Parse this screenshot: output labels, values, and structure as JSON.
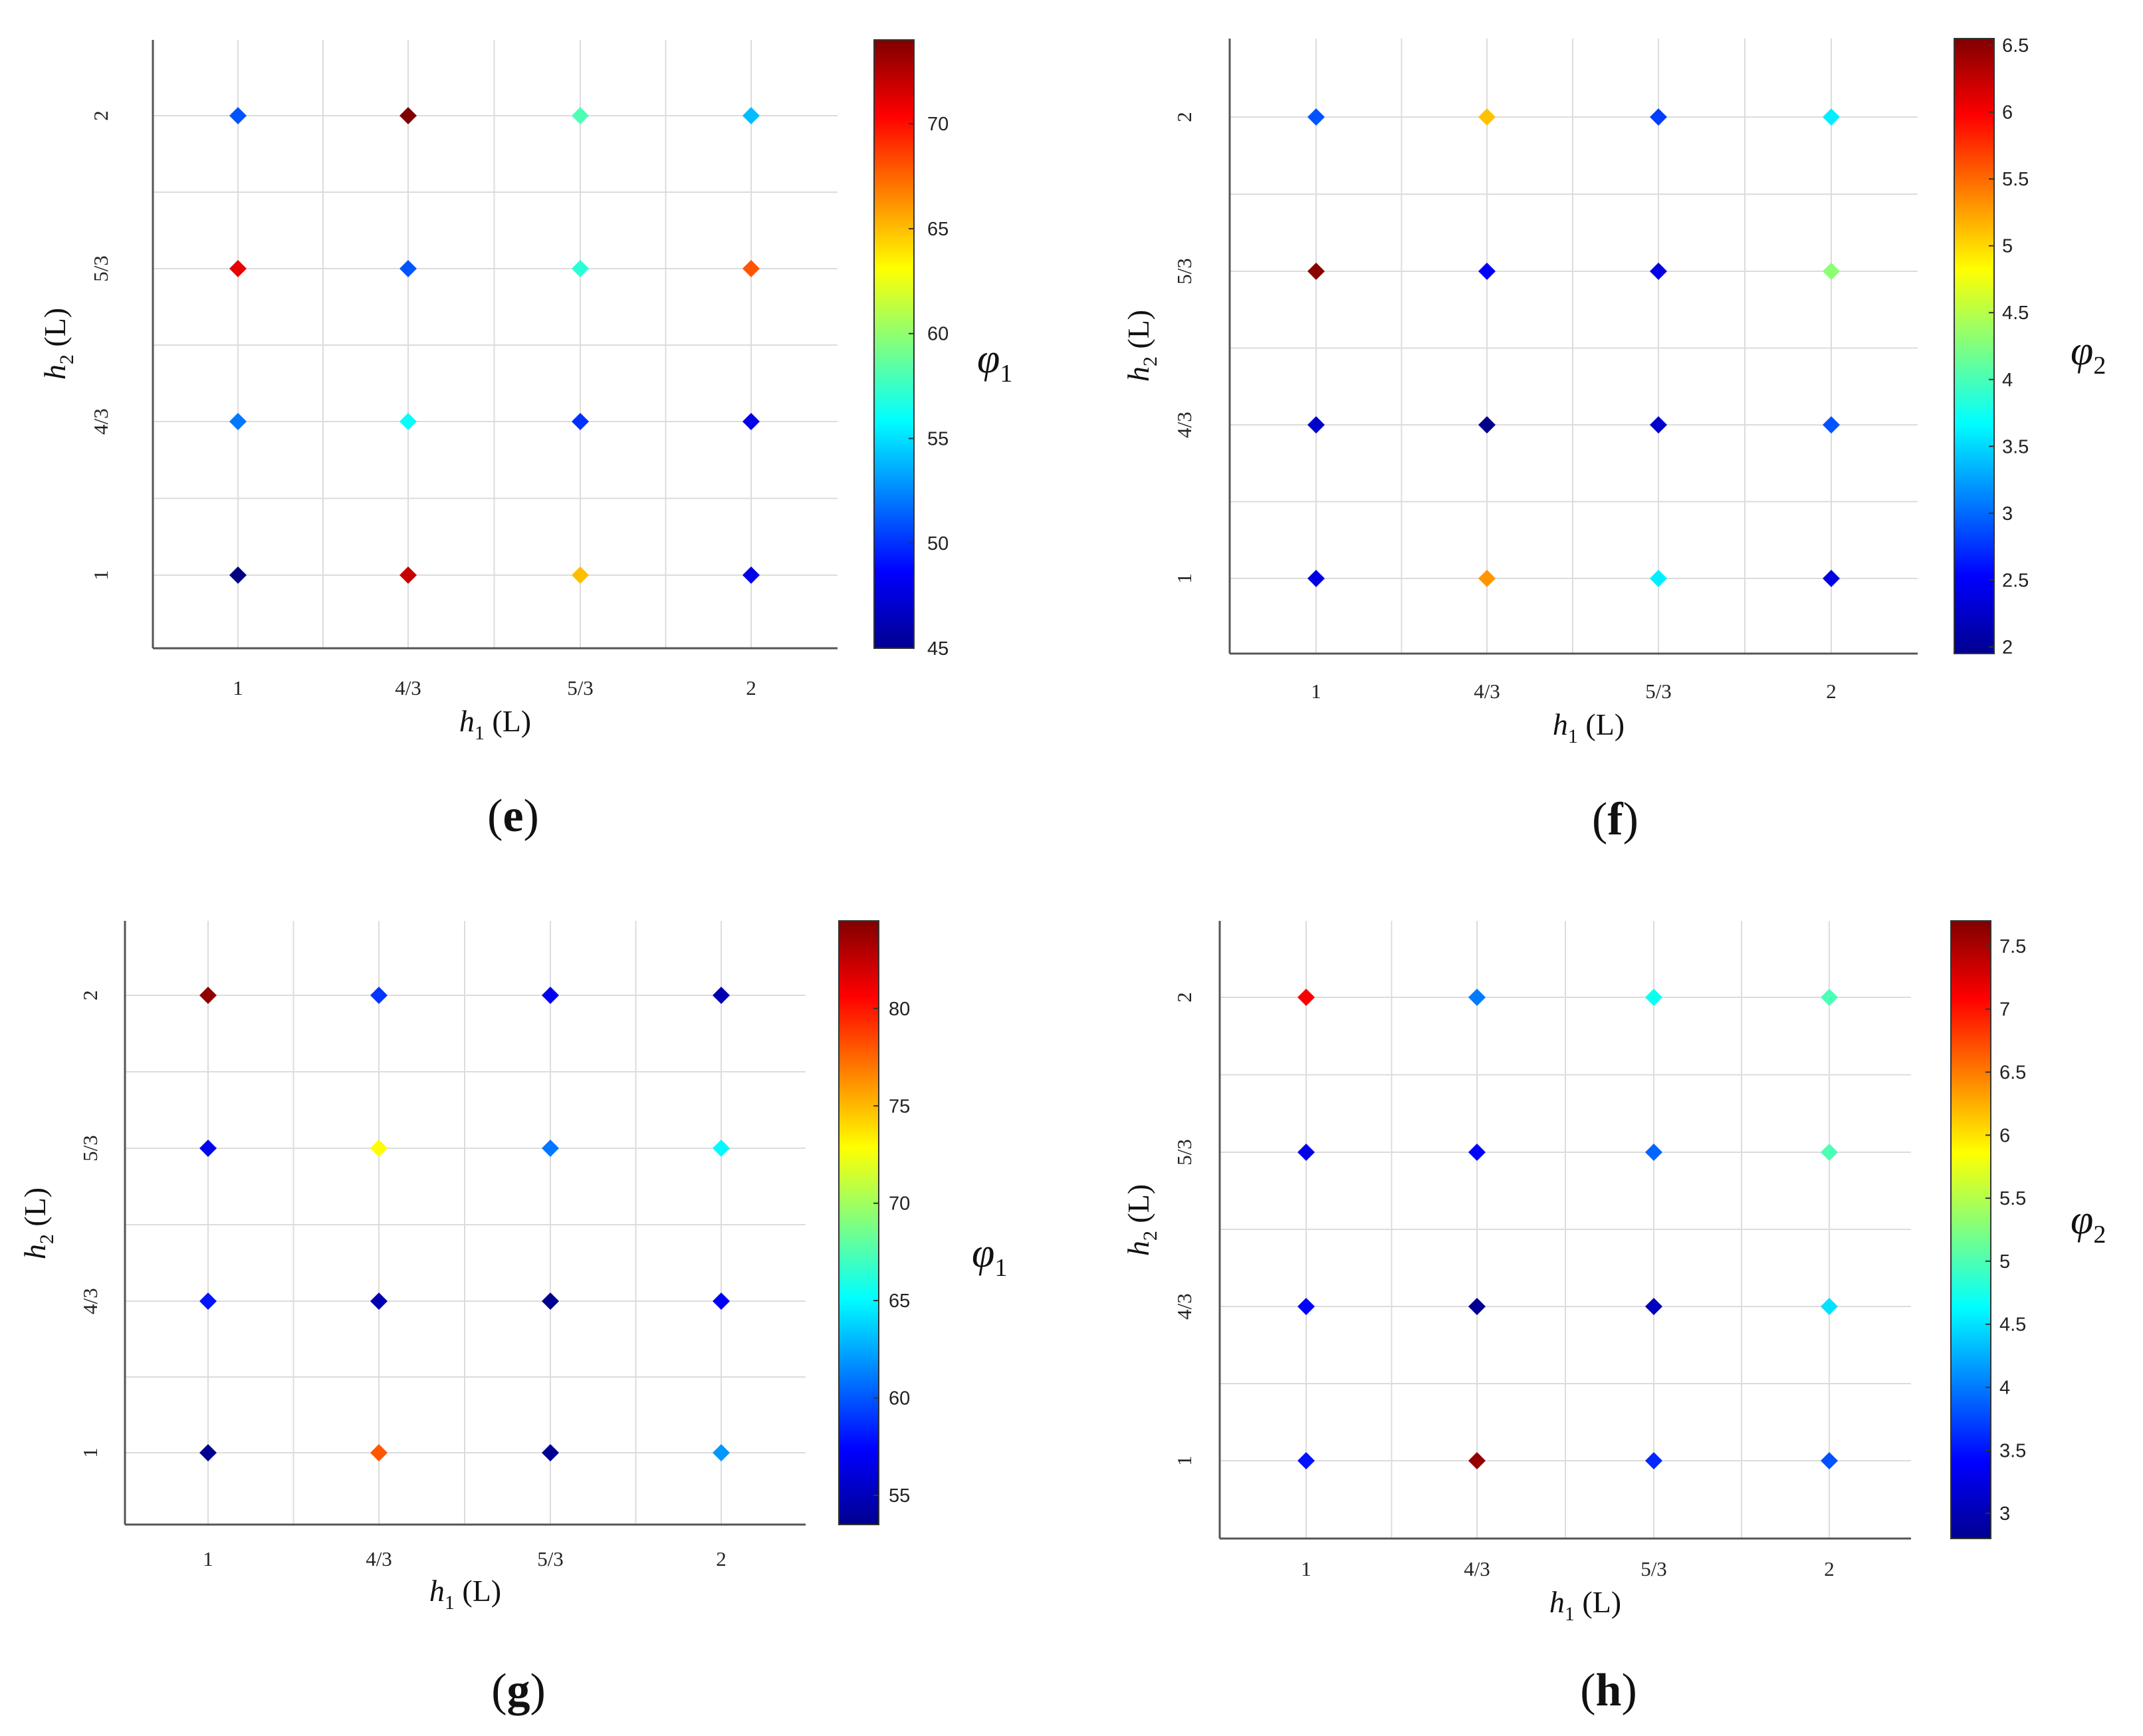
{
  "chart_data": [
    {
      "type": "scatter",
      "panel_label": "e",
      "xlabel": {
        "var": "h",
        "sub": "1",
        "unit": " (L)"
      },
      "ylabel": {
        "var": "h",
        "sub": "2",
        "unit": " (L)"
      },
      "x_tick_labels": [
        "1",
        "4/3",
        "5/3",
        "2"
      ],
      "y_tick_labels": [
        "1",
        "4/3",
        "5/3",
        "2"
      ],
      "colorbar": {
        "var": "φ",
        "sub": "1",
        "range": [
          45,
          74
        ],
        "ticks": [
          45,
          50,
          55,
          60,
          65,
          70
        ]
      },
      "grid": true,
      "values": [
        [
          45,
          72,
          65,
          48
        ],
        [
          52,
          56,
          50,
          48
        ],
        [
          71,
          51,
          57,
          68
        ],
        [
          51,
          74,
          58,
          54
        ]
      ]
    },
    {
      "type": "scatter",
      "panel_label": "f",
      "xlabel": {
        "var": "h",
        "sub": "1",
        "unit": " (L)"
      },
      "ylabel": {
        "var": "h",
        "sub": "2",
        "unit": " (L)"
      },
      "x_tick_labels": [
        "1",
        "4/3",
        "5/3",
        "2"
      ],
      "y_tick_labels": [
        "1",
        "4/3",
        "5/3",
        "2"
      ],
      "colorbar": {
        "var": "φ",
        "sub": "2",
        "range": [
          1.95,
          6.55
        ],
        "ticks": [
          "2",
          "2.5",
          "3",
          "3.5",
          "4",
          "4.5",
          "5",
          "5.5",
          "6",
          "6.5"
        ]
      },
      "grid": true,
      "values": [
        [
          2.4,
          5.3,
          3.6,
          2.4
        ],
        [
          2.3,
          2.0,
          2.3,
          2.9
        ],
        [
          6.5,
          2.5,
          2.4,
          4.3
        ],
        [
          2.9,
          5.1,
          2.8,
          3.6
        ]
      ]
    },
    {
      "type": "scatter",
      "panel_label": "g",
      "xlabel": {
        "var": "h",
        "sub": "1",
        "unit": " (L)"
      },
      "ylabel": {
        "var": "h",
        "sub": "2",
        "unit": " (L)"
      },
      "x_tick_labels": [
        "1",
        "4/3",
        "5/3",
        "2"
      ],
      "y_tick_labels": [
        "1",
        "4/3",
        "5/3",
        "2"
      ],
      "colorbar": {
        "var": "φ",
        "sub": "1",
        "range": [
          53.5,
          84.5
        ],
        "ticks": [
          55,
          60,
          65,
          70,
          75,
          80
        ]
      },
      "grid": true,
      "values": [
        [
          54,
          78,
          54,
          62
        ],
        [
          58,
          55,
          54,
          57
        ],
        [
          57,
          73,
          61,
          65
        ],
        [
          84,
          59,
          57,
          55
        ]
      ]
    },
    {
      "type": "scatter",
      "panel_label": "h",
      "xlabel": {
        "var": "h",
        "sub": "1",
        "unit": " (L)"
      },
      "ylabel": {
        "var": "h",
        "sub": "2",
        "unit": " (L)"
      },
      "x_tick_labels": [
        "1",
        "4/3",
        "5/3",
        "2"
      ],
      "y_tick_labels": [
        "1",
        "4/3",
        "5/3",
        "2"
      ],
      "colorbar": {
        "var": "φ",
        "sub": "2",
        "range": [
          2.8,
          7.7
        ],
        "ticks": [
          "3",
          "3.5",
          "4",
          "4.5",
          "5",
          "5.5",
          "6",
          "6.5",
          "7",
          "7.5"
        ]
      },
      "grid": true,
      "values": [
        [
          3.5,
          7.6,
          3.6,
          3.8
        ],
        [
          3.4,
          2.9,
          3.1,
          4.5
        ],
        [
          3.3,
          3.4,
          3.9,
          5.0
        ],
        [
          7.1,
          4.0,
          4.7,
          5.0
        ]
      ]
    }
  ]
}
